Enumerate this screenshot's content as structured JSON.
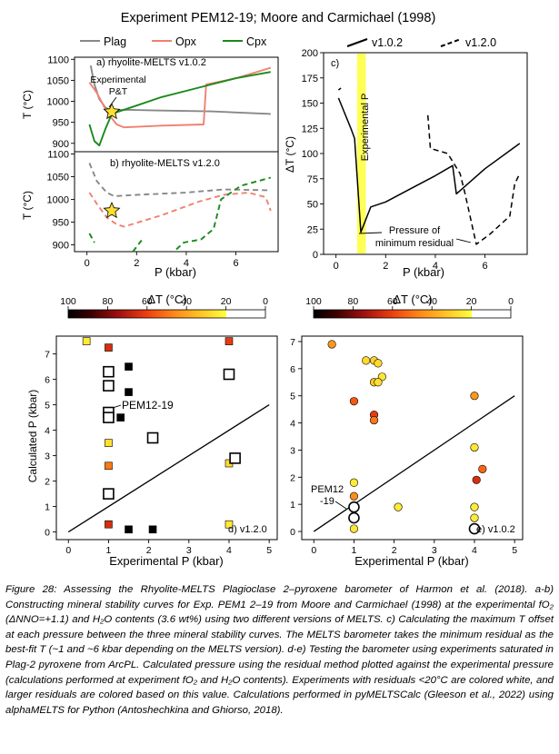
{
  "figure_title": "Experiment PEM12-19; Moore and Carmichael (1998)",
  "colors": {
    "plag": "#888888",
    "opx": "#f08070",
    "cpx": "#1a8a1a",
    "star": "#ffe033",
    "vband": "#ffff55"
  },
  "legend_top_left": [
    "Plag",
    "Opx",
    "Cpx"
  ],
  "legend_top_right": [
    "v1.0.2",
    "v1.2.0"
  ],
  "panel_a_label": "a) rhyolite-MELTS v1.0.2",
  "panel_b_label": "b) rhyolite-MELTS v1.2.0",
  "panel_c_label": "c)",
  "panel_d_label": "d) v1.2.0",
  "panel_e_label": "e) v1.0.2",
  "annotation_exp_pt": [
    "Experimental",
    "P&T"
  ],
  "annotation_exp_p": "Experimental P",
  "annotation_min_resid": [
    "Pressure of",
    "minimum residual"
  ],
  "annotation_pem_d": "PEM12-19",
  "annotation_pem_e": [
    "PEM12",
    "-19"
  ],
  "axis_t": "T (°C)",
  "axis_dt": "ΔT (°C)",
  "axis_p": "P (kbar)",
  "axis_calc_p": "Calculated P (kbar)",
  "axis_exp_p": "Experimental P (kbar)",
  "colorbar_title": "ΔT (°C)",
  "colorbar_ticks": [
    "100",
    "80",
    "60",
    "40",
    "20",
    "0"
  ],
  "caption": "Figure 28: Assessing the Rhyolite-MELTS Plagioclase 2–pyroxene barometer of Harmon et al. (2018). a-b) Constructing mineral stability curves for Exp. PEM1 2–19 from Moore and Carmichael (1998) at the experimental fO₂ (ΔNNO=+1.1) and H₂O contents (3.6 wt%) using two different versions of MELTS. c) Calculating the maximum T offset at each pressure between the three mineral stability curves. The MELTS barometer takes the minimum residual as the best-fit T (~1 and ~6 kbar depending on the MELTS version). d-e) Testing the barometer using experiments saturated in Plag-2 pyroxene from ArcPL. Calculated pressure using the residual method plotted against the experimental pressure (calculations performed at experiment fO₂ and H₂O contents). Experiments with residuals <20°C are colored white, and larger residuals are colored based on this value. Calculations performed in pyMELTSCalc (Gleeson et al., 2022) using alphaMELTS for Python (Antoshechkina and Ghiorso, 2018).",
  "chart_data": [
    {
      "type": "line",
      "panel": "a",
      "title": "a) rhyolite-MELTS v1.0.2",
      "xlabel": "P (kbar)",
      "ylabel": "T (°C)",
      "xlim": [
        -0.5,
        7.7
      ],
      "ylim": [
        880,
        1105
      ],
      "yticks": [
        900,
        950,
        1000,
        1050,
        1100
      ],
      "series": [
        {
          "name": "Plag",
          "style": "solid",
          "points": [
            [
              0.15,
              1085
            ],
            [
              0.3,
              1040
            ],
            [
              0.5,
              1005
            ],
            [
              0.75,
              985
            ],
            [
              1.0,
              978
            ],
            [
              1.5,
              980
            ],
            [
              3,
              978
            ],
            [
              5,
              976
            ],
            [
              7.4,
              970
            ]
          ]
        },
        {
          "name": "Opx",
          "style": "solid",
          "points": [
            [
              0.1,
              1045
            ],
            [
              0.4,
              1020
            ],
            [
              0.8,
              975
            ],
            [
              1.2,
              945
            ],
            [
              1.5,
              938
            ],
            [
              3,
              942
            ],
            [
              4.7,
              945
            ],
            [
              4.8,
              1040
            ],
            [
              6,
              1055
            ],
            [
              7.4,
              1080
            ]
          ]
        },
        {
          "name": "Cpx",
          "style": "solid",
          "points": [
            [
              0.1,
              945
            ],
            [
              0.3,
              905
            ],
            [
              0.5,
              895
            ],
            [
              0.75,
              935
            ],
            [
              1.0,
              970
            ],
            [
              2,
              990
            ],
            [
              3,
              1010
            ],
            [
              4,
              1025
            ],
            [
              5,
              1040
            ],
            [
              6,
              1055
            ],
            [
              7.4,
              1070
            ]
          ]
        }
      ],
      "marker": {
        "label": "Experimental P&T",
        "x": 1.0,
        "y": 975
      }
    },
    {
      "type": "line",
      "panel": "b",
      "title": "b) rhyolite-MELTS v1.2.0",
      "xlabel": "P (kbar)",
      "ylabel": "T (°C)",
      "xlim": [
        -0.5,
        7.7
      ],
      "ylim": [
        885,
        1105
      ],
      "yticks": [
        900,
        950,
        1000,
        1050,
        1100
      ],
      "xticks": [
        0,
        2,
        4,
        6
      ],
      "series": [
        {
          "name": "Plag",
          "style": "dashed",
          "points": [
            [
              0.1,
              1080
            ],
            [
              0.4,
              1040
            ],
            [
              0.8,
              1015
            ],
            [
              1.1,
              1007
            ],
            [
              2,
              1010
            ],
            [
              4,
              1015
            ],
            [
              5.5,
              1022
            ],
            [
              7.4,
              1020
            ]
          ]
        },
        {
          "name": "Opx",
          "style": "dashed",
          "points": [
            [
              0.1,
              1015
            ],
            [
              0.4,
              990
            ],
            [
              0.8,
              960
            ],
            [
              1.2,
              945
            ],
            [
              1.5,
              940
            ],
            [
              3,
              965
            ],
            [
              4.5,
              995
            ],
            [
              5.5,
              1010
            ],
            [
              6.5,
              1015
            ],
            [
              7.2,
              1005
            ],
            [
              7.4,
              975
            ]
          ]
        },
        {
          "name": "Cpx",
          "style": "dashed",
          "points": [
            [
              0.1,
              925
            ],
            [
              0.3,
              905
            ]
          ]
        },
        {
          "name": "Cpx",
          "style": "dashed",
          "points": [
            [
              1.85,
              885
            ],
            [
              2.2,
              910
            ]
          ]
        },
        {
          "name": "Cpx",
          "style": "dashed",
          "points": [
            [
              3.6,
              890
            ],
            [
              3.9,
              905
            ],
            [
              4.6,
              912
            ],
            [
              5.1,
              935
            ],
            [
              5.4,
              1000
            ],
            [
              6.2,
              1030
            ],
            [
              7.4,
              1048
            ]
          ]
        }
      ],
      "marker": {
        "label": "Experimental P&T",
        "x": 1.0,
        "y": 975
      }
    },
    {
      "type": "line",
      "panel": "c",
      "xlabel": "P (kbar)",
      "ylabel": "ΔT (°C)",
      "xlim": [
        -0.5,
        7.7
      ],
      "ylim": [
        0,
        200
      ],
      "yticks": [
        0,
        25,
        50,
        75,
        100,
        125,
        150,
        175,
        200
      ],
      "xticks": [
        0,
        2,
        4,
        6
      ],
      "vband": [
        0.85,
        1.2
      ],
      "series": [
        {
          "name": "v1.0.2",
          "style": "solid",
          "points": [
            [
              0.1,
              155
            ],
            [
              0.6,
              125
            ],
            [
              0.75,
              115
            ],
            [
              1.0,
              22
            ],
            [
              1.4,
              47
            ],
            [
              2,
              52
            ],
            [
              3,
              65
            ],
            [
              4,
              78
            ],
            [
              4.7,
              88
            ],
            [
              4.85,
              60
            ],
            [
              6,
              85
            ],
            [
              7.4,
              110
            ]
          ]
        },
        {
          "name": "v1.2.0",
          "style": "dashed",
          "points": [
            [
              0.1,
              163
            ],
            [
              0.2,
              165
            ]
          ]
        },
        {
          "name": "v1.2.0",
          "style": "dashed",
          "points": [
            [
              3.7,
              138
            ],
            [
              3.8,
              105
            ],
            [
              4.5,
              100
            ],
            [
              5.0,
              80
            ],
            [
              5.2,
              60
            ],
            [
              5.65,
              10
            ],
            [
              6.2,
              20
            ],
            [
              7.0,
              38
            ],
            [
              7.2,
              70
            ],
            [
              7.4,
              80
            ]
          ]
        }
      ],
      "annotation": {
        "text": "Pressure of minimum residual",
        "x": 5.6,
        "y": 10
      }
    },
    {
      "type": "scatter",
      "panel": "d",
      "xlabel": "Experimental P (kbar)",
      "ylabel": "Calculated P (kbar)",
      "xlim": [
        -0.3,
        5.2
      ],
      "ylim": [
        -0.3,
        7.7
      ],
      "xticks": [
        0,
        1,
        2,
        3,
        4,
        5
      ],
      "yticks": [
        0,
        1,
        2,
        3,
        4,
        5,
        6,
        7
      ],
      "marker_shape": "square",
      "one_to_one_line": [
        [
          0,
          0
        ],
        [
          5,
          5
        ]
      ],
      "points": [
        {
          "x": 0.45,
          "y": 7.5,
          "dT": 28
        },
        {
          "x": 1.0,
          "y": 7.25,
          "dT": 68
        },
        {
          "x": 1.0,
          "y": 6.3,
          "dT": 0
        },
        {
          "x": 1.0,
          "y": 5.75,
          "dT": 0
        },
        {
          "x": 1.0,
          "y": 4.7,
          "dT": 0
        },
        {
          "x": 1.0,
          "y": 4.5,
          "dT": 0
        },
        {
          "x": 1.0,
          "y": 3.5,
          "dT": 32
        },
        {
          "x": 1.0,
          "y": 2.6,
          "dT": 55
        },
        {
          "x": 1.0,
          "y": 1.5,
          "dT": 0
        },
        {
          "x": 1.0,
          "y": 0.3,
          "dT": 68
        },
        {
          "x": 1.3,
          "y": 4.5,
          "dT": 100
        },
        {
          "x": 1.5,
          "y": 6.5,
          "dT": 100
        },
        {
          "x": 1.5,
          "y": 5.5,
          "dT": 100
        },
        {
          "x": 1.5,
          "y": 0.1,
          "dT": 100
        },
        {
          "x": 2.1,
          "y": 3.7,
          "dT": 0
        },
        {
          "x": 2.1,
          "y": 0.1,
          "dT": 100
        },
        {
          "x": 4.0,
          "y": 7.5,
          "dT": 65
        },
        {
          "x": 4.0,
          "y": 6.2,
          "dT": 0
        },
        {
          "x": 4.0,
          "y": 2.7,
          "dT": 35
        },
        {
          "x": 4.15,
          "y": 2.9,
          "dT": 0
        },
        {
          "x": 4.0,
          "y": 0.3,
          "dT": 28
        }
      ],
      "annotation": {
        "text": "PEM12-19",
        "x": 1.0,
        "y": 4.7
      }
    },
    {
      "type": "scatter",
      "panel": "e",
      "xlabel": "Experimental P (kbar)",
      "xlim": [
        -0.3,
        5.2
      ],
      "ylim": [
        -0.3,
        7.2
      ],
      "xticks": [
        0,
        1,
        2,
        3,
        4,
        5
      ],
      "yticks": [
        0,
        1,
        2,
        3,
        4,
        5,
        6,
        7
      ],
      "marker_shape": "circle",
      "one_to_one_line": [
        [
          0,
          0
        ],
        [
          5,
          5
        ]
      ],
      "points": [
        {
          "x": 0.45,
          "y": 6.9,
          "dT": 50
        },
        {
          "x": 1.3,
          "y": 6.3,
          "dT": 35
        },
        {
          "x": 1.5,
          "y": 6.3,
          "dT": 38
        },
        {
          "x": 1.6,
          "y": 6.2,
          "dT": 35
        },
        {
          "x": 1.7,
          "y": 5.7,
          "dT": 30
        },
        {
          "x": 1.5,
          "y": 5.5,
          "dT": 40
        },
        {
          "x": 1.6,
          "y": 5.5,
          "dT": 32
        },
        {
          "x": 1.0,
          "y": 4.8,
          "dT": 60
        },
        {
          "x": 1.5,
          "y": 4.3,
          "dT": 65
        },
        {
          "x": 1.5,
          "y": 4.1,
          "dT": 55
        },
        {
          "x": 1.0,
          "y": 1.8,
          "dT": 28
        },
        {
          "x": 1.0,
          "y": 1.3,
          "dT": 52
        },
        {
          "x": 1.0,
          "y": 0.9,
          "dT": 0
        },
        {
          "x": 1.0,
          "y": 0.5,
          "dT": 0
        },
        {
          "x": 1.0,
          "y": 0.1,
          "dT": 30
        },
        {
          "x": 2.1,
          "y": 0.9,
          "dT": 28
        },
        {
          "x": 4.0,
          "y": 5.0,
          "dT": 50
        },
        {
          "x": 4.0,
          "y": 3.1,
          "dT": 30
        },
        {
          "x": 4.2,
          "y": 2.3,
          "dT": 58
        },
        {
          "x": 4.05,
          "y": 1.9,
          "dT": 68
        },
        {
          "x": 4.0,
          "y": 0.9,
          "dT": 28
        },
        {
          "x": 4.0,
          "y": 0.5,
          "dT": 28
        },
        {
          "x": 4.0,
          "y": 0.1,
          "dT": 0
        }
      ],
      "annotation": {
        "text": "PEM12-19",
        "x": 1.0,
        "y": 0.9
      }
    }
  ]
}
